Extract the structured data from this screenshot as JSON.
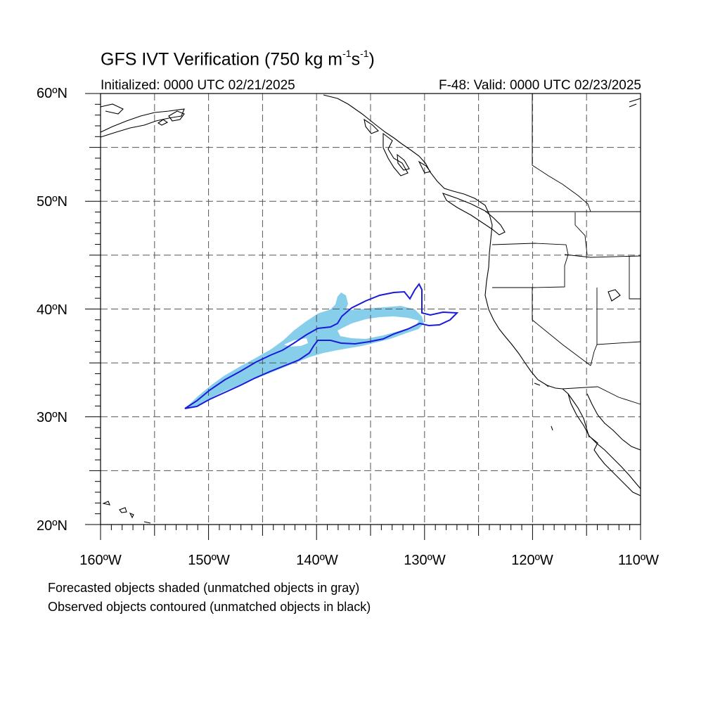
{
  "title": {
    "text": "GFS IVT Verification (750 kg m",
    "sup1": "-1",
    "mid": "s",
    "sup2": "-1",
    "end": ")"
  },
  "initialized": "Initialized: 0000 UTC 02/21/2025",
  "valid": "F-48: Valid: 0000 UTC 02/23/2025",
  "axes": {
    "lon_range": [
      -160,
      -110
    ],
    "lat_range": [
      20,
      60
    ],
    "lat_labels": [
      "60ºN",
      "50ºN",
      "40ºN",
      "30ºN",
      "20ºN"
    ],
    "lon_labels": [
      "160ºW",
      "150ºW",
      "140ºW",
      "130ºW",
      "120ºW",
      "110ºW"
    ],
    "grid_spacing_deg": 5,
    "grid": "dashed"
  },
  "colors": {
    "forecast_fill": "#87ceeb",
    "observed_contour": "#1a1adb",
    "coast": "#000000"
  },
  "captions": {
    "line1": "Forecasted objects shaded (unmatched objects in gray)",
    "line2": "Observed objects contoured (unmatched objects in black)"
  }
}
